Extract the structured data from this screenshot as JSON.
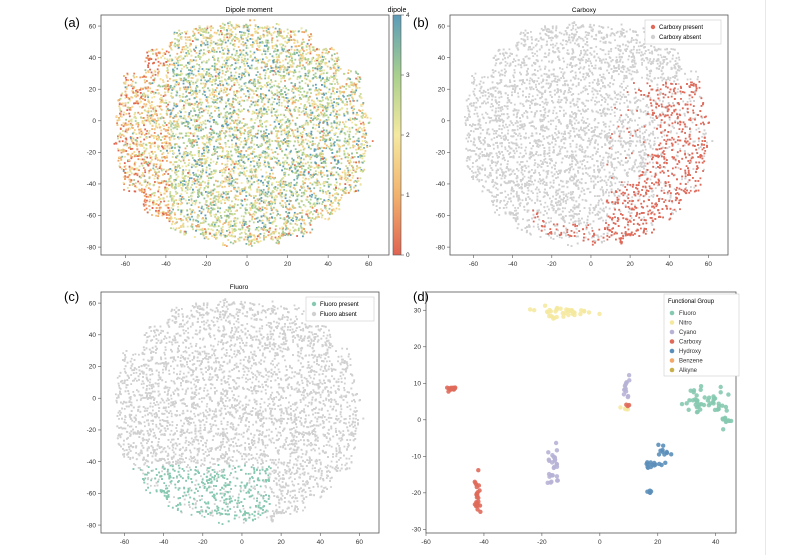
{
  "panels": [
    {
      "id": "a",
      "letter": "(a)"
    },
    {
      "id": "b",
      "letter": "(b)"
    },
    {
      "id": "c",
      "letter": "(c)"
    },
    {
      "id": "d",
      "letter": "(d)"
    }
  ],
  "chart_data": [
    {
      "id": "a",
      "type": "scatter",
      "title": "Dipole moment",
      "xlabel": "",
      "ylabel": "",
      "xlim": [
        -72,
        70
      ],
      "ylim": [
        -85,
        67
      ],
      "xticks": [
        -60,
        -40,
        -20,
        0,
        20,
        40,
        60
      ],
      "yticks": [
        -80,
        -60,
        -40,
        -20,
        0,
        20,
        40,
        60
      ],
      "cloud": {
        "center": [
          -2,
          -8
        ],
        "rx": 64,
        "ry": 72,
        "points": 7000
      },
      "colormap": [
        "#e06452",
        "#f2b36e",
        "#f5e9a0",
        "#a8d08e",
        "#5b9bba"
      ],
      "colorbar": {
        "label": "dipole",
        "min": 0,
        "max": 4,
        "ticks": [
          0,
          1,
          2,
          3,
          4
        ]
      }
    },
    {
      "id": "b",
      "type": "scatter",
      "title": "Carboxy",
      "xlabel": "",
      "ylabel": "",
      "xlim": [
        -72,
        70
      ],
      "ylim": [
        -85,
        67
      ],
      "xticks": [
        -60,
        -40,
        -20,
        0,
        20,
        40,
        60
      ],
      "yticks": [
        -80,
        -60,
        -40,
        -20,
        0,
        20,
        40,
        60
      ],
      "cloud": {
        "center": [
          -2,
          -8
        ],
        "rx": 64,
        "ry": 72,
        "points": 6000
      },
      "base_color": "#d0d0d0",
      "highlight_color": "#e06a5a",
      "highlight_region": "right and lower-right edge",
      "legend": [
        {
          "label": "Carboxy present",
          "color": "#e06a5a"
        },
        {
          "label": "Carboxy absent",
          "color": "#d0d0d0"
        }
      ]
    },
    {
      "id": "c",
      "type": "scatter",
      "title": "Fluoro",
      "xlabel": "",
      "ylabel": "",
      "xlim": [
        -72,
        70
      ],
      "ylim": [
        -85,
        67
      ],
      "xticks": [
        -60,
        -40,
        -20,
        0,
        20,
        40,
        60
      ],
      "yticks": [
        -80,
        -60,
        -40,
        -20,
        0,
        20,
        40,
        60
      ],
      "cloud": {
        "center": [
          -2,
          -8
        ],
        "rx": 64,
        "ry": 72,
        "points": 6000
      },
      "base_color": "#d0d0d0",
      "highlight_color": "#86c9b0",
      "highlight_region": "bottom",
      "legend": [
        {
          "label": "Fluoro present",
          "color": "#86c9b0"
        },
        {
          "label": "Fluoro absent",
          "color": "#d0d0d0"
        }
      ]
    },
    {
      "id": "d",
      "type": "scatter",
      "title": "",
      "xlabel": "",
      "ylabel": "",
      "xlim": [
        -60,
        47
      ],
      "ylim": [
        -31,
        35
      ],
      "xticks": [
        -60,
        -40,
        -20,
        0,
        20,
        40
      ],
      "yticks": [
        -30,
        -20,
        -10,
        0,
        10,
        20,
        30
      ],
      "legend_title": "Functional Group",
      "groups": [
        {
          "name": "Fluoro",
          "color": "#86c9b0",
          "clusters": [
            {
              "cx": 33,
              "cy": 5,
              "sx": 2.5,
              "sy": 2.5,
              "n": 25
            },
            {
              "cx": 40,
              "cy": 5,
              "sx": 2.5,
              "sy": 2,
              "n": 20
            },
            {
              "cx": 44,
              "cy": 0,
              "sx": 1.5,
              "sy": 2,
              "n": 12
            }
          ]
        },
        {
          "name": "Nitro",
          "color": "#f5e9a0",
          "clusters": [
            {
              "cx": -12,
              "cy": 29.5,
              "sx": 6.5,
              "sy": 1,
              "n": 40
            },
            {
              "cx": 8,
              "cy": 3,
              "sx": 1,
              "sy": 0.8,
              "n": 4
            }
          ]
        },
        {
          "name": "Cyano",
          "color": "#b7b2d6",
          "clusters": [
            {
              "cx": -16,
              "cy": -13,
              "sx": 1.5,
              "sy": 4,
              "n": 28
            },
            {
              "cx": 9,
              "cy": 9,
              "sx": 1,
              "sy": 2.2,
              "n": 14
            }
          ]
        },
        {
          "name": "Carboxy",
          "color": "#e06a5a",
          "clusters": [
            {
              "cx": -51,
              "cy": 8.5,
              "sx": 1.5,
              "sy": 0.6,
              "n": 14
            },
            {
              "cx": -42,
              "cy": -21,
              "sx": 1,
              "sy": 4,
              "n": 24
            },
            {
              "cx": 10,
              "cy": 4,
              "sx": 0.8,
              "sy": 0.3,
              "n": 3
            }
          ]
        },
        {
          "name": "Hydroxy",
          "color": "#5b8fba",
          "clusters": [
            {
              "cx": 18,
              "cy": -12,
              "sx": 2,
              "sy": 1.5,
              "n": 12
            },
            {
              "cx": 22,
              "cy": -10,
              "sx": 1.5,
              "sy": 3,
              "n": 12
            },
            {
              "cx": 17,
              "cy": -19.5,
              "sx": 0.6,
              "sy": 0.6,
              "n": 5
            }
          ]
        },
        {
          "name": "Benzene",
          "color": "#f2a86b",
          "clusters": []
        },
        {
          "name": "Alkyne",
          "color": "#c9b04a",
          "clusters": []
        }
      ]
    }
  ]
}
